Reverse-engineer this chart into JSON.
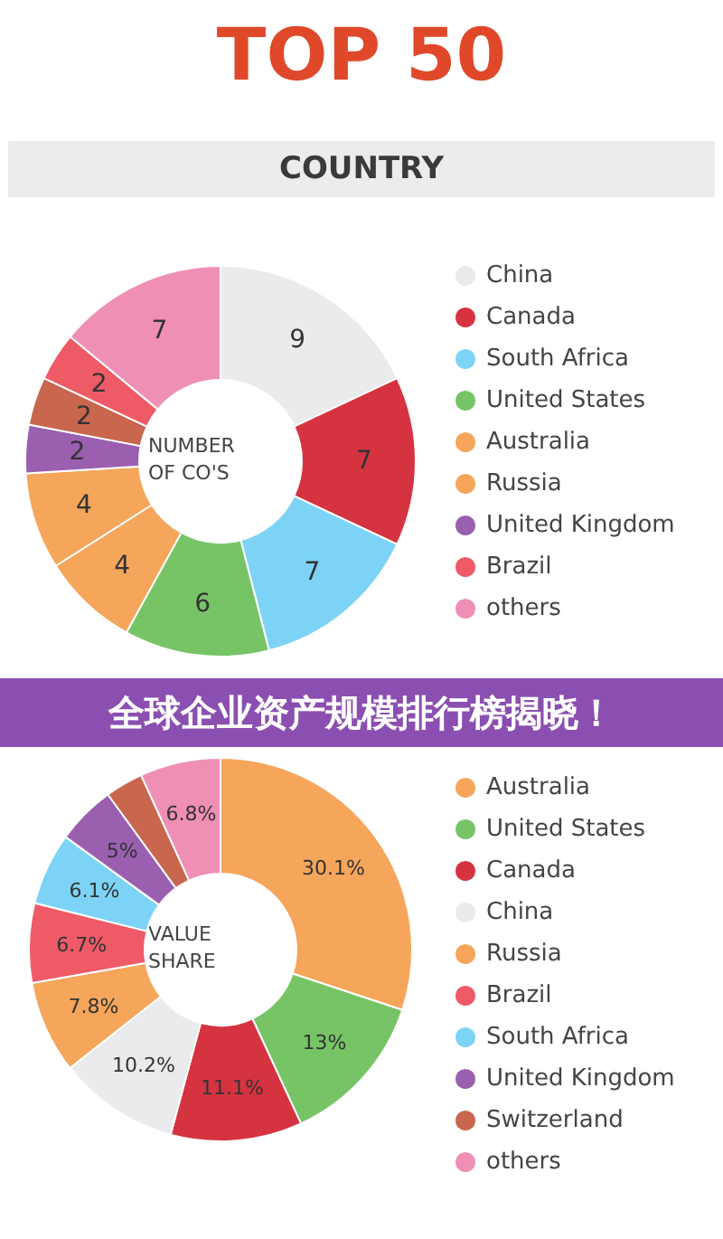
{
  "chart_data": [
    {
      "type": "donut",
      "title": "TOP 50",
      "subtitle": "COUNTRY",
      "annotations": [
        "NUMBER\nOF CO'S"
      ],
      "categories": [
        "China",
        "Canada",
        "South Africa",
        "United States",
        "Australia",
        "Russia",
        "United Kingdom",
        null,
        "Brazil",
        "others"
      ],
      "values": [
        9,
        7,
        7,
        6,
        4,
        4,
        2,
        2,
        2,
        7
      ],
      "colors": [
        "#ebebed",
        "#d63340",
        "#7dd3f5",
        "#77c467",
        "#f5a65b",
        "#f5a65b",
        "#9b5fb0",
        "#c8664e",
        "#ef5a67",
        "#ef8fb5"
      ],
      "data_labels": true,
      "legend": "right"
    },
    {
      "type": "donut",
      "title": "全球企业资产规模排行榜揭晓！",
      "annotations": [
        "VALUE\nSHARE"
      ],
      "categories": [
        "Australia",
        "United States",
        "Canada",
        "China",
        "Russia",
        "Brazil",
        "South Africa",
        "United Kingdom",
        "Switzerland",
        "others"
      ],
      "values": [
        30.1,
        13,
        11.1,
        10.2,
        7.8,
        6.7,
        6.1,
        5,
        3.2,
        6.8
      ],
      "value_labels": [
        "30.1%",
        "13%",
        "11.1%",
        "10.2%",
        "7.8%",
        "6.7%",
        "6.1%",
        "5%",
        null,
        "6.8%"
      ],
      "colors": [
        "#f5a65b",
        "#77c467",
        "#d63340",
        "#ebebed",
        "#f5a65b",
        "#ef5a67",
        "#7dd3f5",
        "#9b5fb0",
        "#c8664e",
        "#ef8fb5"
      ],
      "legend": "right"
    }
  ]
}
